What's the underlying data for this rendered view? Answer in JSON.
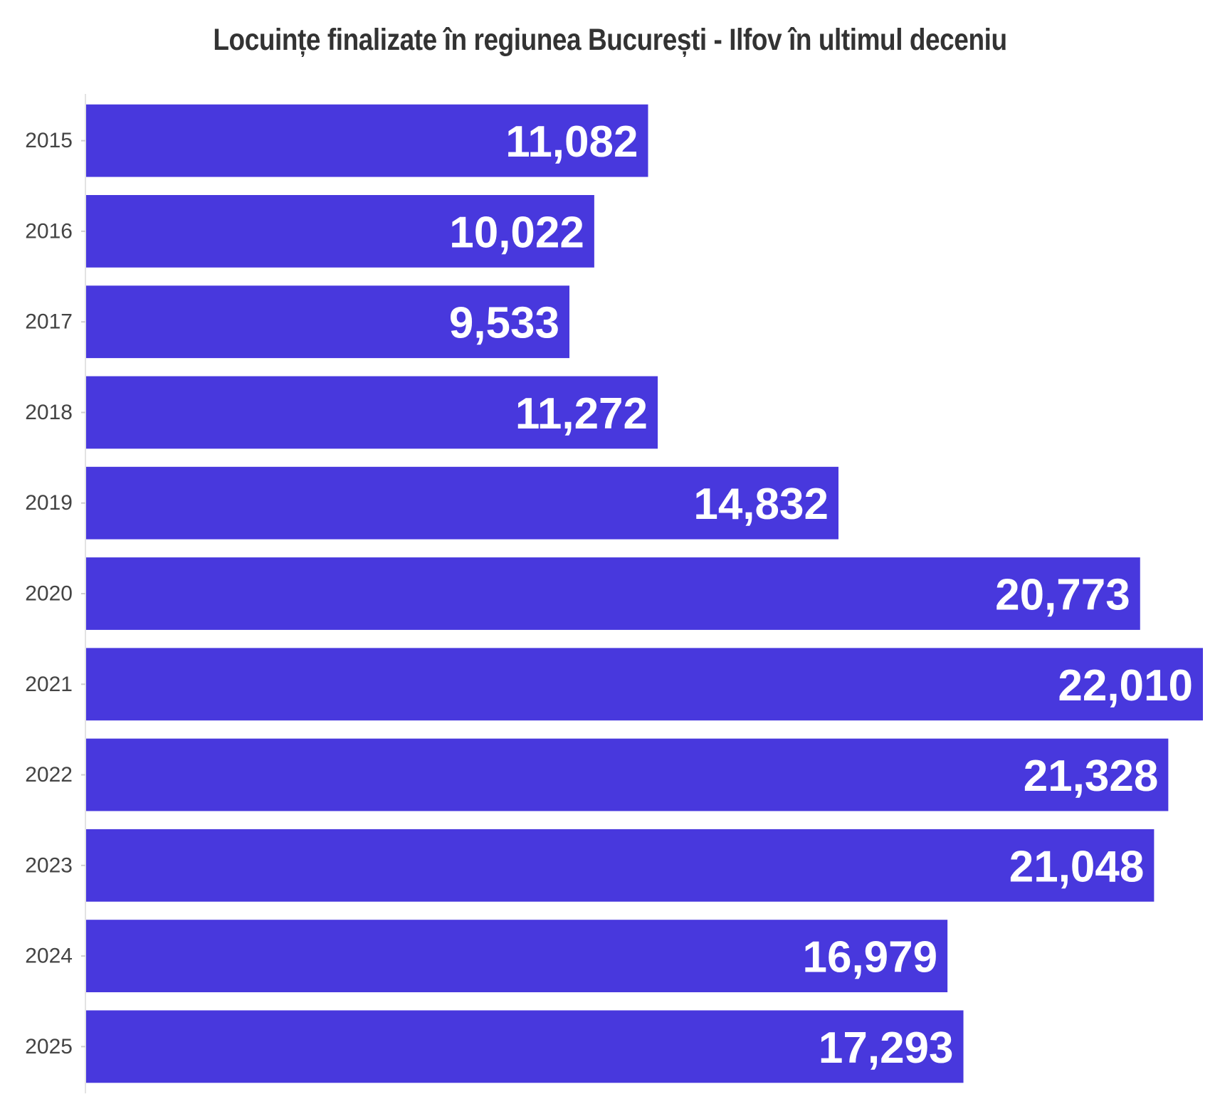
{
  "chart_data": {
    "type": "bar",
    "orientation": "horizontal",
    "title": "Locuințe finalizate în regiunea București - Ilfov în ultimul deceniu",
    "categories": [
      "2015",
      "2016",
      "2017",
      "2018",
      "2019",
      "2020",
      "2021",
      "2022",
      "2023",
      "2024",
      "2025"
    ],
    "values": [
      11082,
      10022,
      9533,
      11272,
      14832,
      20773,
      22010,
      21328,
      21048,
      16979,
      17293
    ],
    "value_labels": [
      "11,082",
      "10,022",
      "9,533",
      "11,272",
      "14,832",
      "20,773",
      "22,010",
      "21,328",
      "21,048",
      "16,979",
      "17,293"
    ],
    "xlabel": "",
    "ylabel": "",
    "xlim": [
      0,
      22010
    ],
    "grid": false,
    "legend": "none",
    "bar_color": "#4838dd",
    "label_color": "#ffffff"
  }
}
